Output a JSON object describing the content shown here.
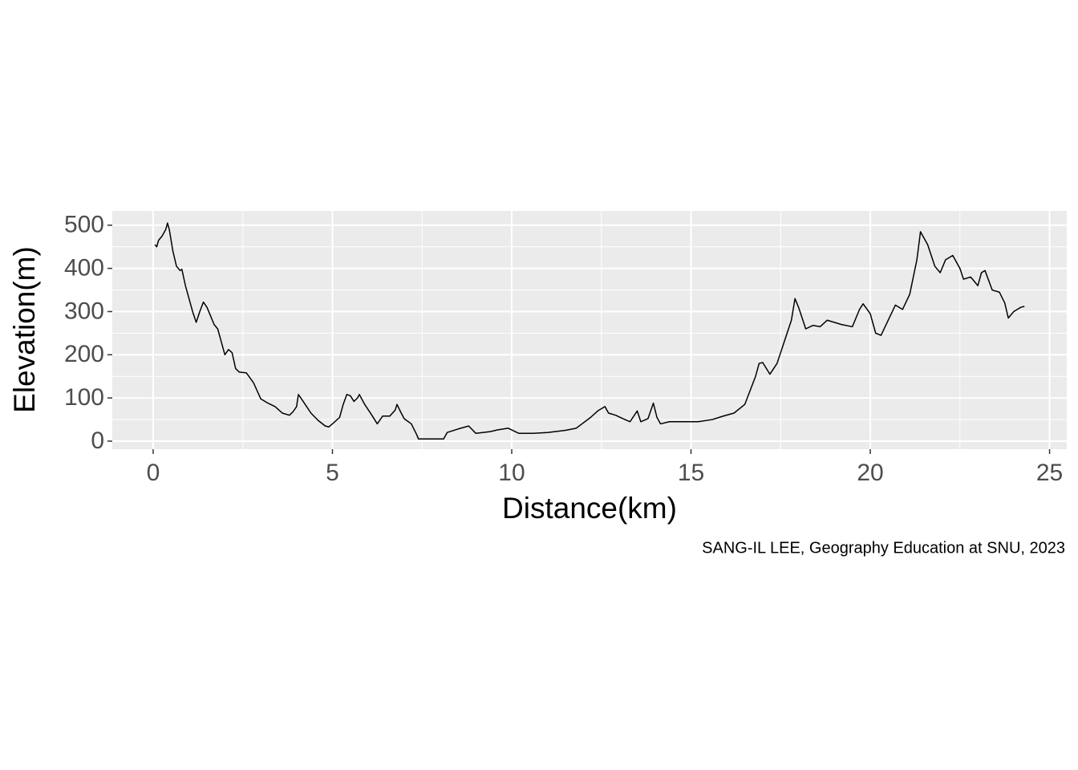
{
  "chart_data": {
    "type": "line",
    "x_label": "Distance(km)",
    "y_label": "Elevation(m)",
    "caption": "SANG-IL LEE, Geography Education at SNU, 2023",
    "xlim": [
      -1.14,
      25.48
    ],
    "ylim": [
      -18.6,
      533
    ],
    "xticks": [
      0,
      5,
      10,
      15,
      20,
      25
    ],
    "yticks": [
      0,
      100,
      200,
      300,
      400,
      500
    ],
    "minor_xticks": [
      2.5,
      7.5,
      12.5,
      17.5,
      22.5
    ],
    "minor_yticks": [
      50,
      150,
      250,
      350,
      450
    ],
    "grid": true,
    "x": [
      0.05,
      0.1,
      0.15,
      0.25,
      0.35,
      0.4,
      0.45,
      0.55,
      0.65,
      0.75,
      0.8,
      0.9,
      1.0,
      1.1,
      1.2,
      1.3,
      1.4,
      1.5,
      1.6,
      1.7,
      1.8,
      1.9,
      2.0,
      2.1,
      2.2,
      2.3,
      2.4,
      2.6,
      2.8,
      3.0,
      3.2,
      3.4,
      3.6,
      3.8,
      3.9,
      4.0,
      4.05,
      4.2,
      4.4,
      4.6,
      4.8,
      4.9,
      5.0,
      5.2,
      5.3,
      5.4,
      5.5,
      5.6,
      5.7,
      5.75,
      5.9,
      6.1,
      6.25,
      6.4,
      6.6,
      6.75,
      6.8,
      6.9,
      7.0,
      7.2,
      7.35,
      7.4,
      8.1,
      8.2,
      8.5,
      8.8,
      9.0,
      9.4,
      9.6,
      9.9,
      10.2,
      10.6,
      11.0,
      11.5,
      11.8,
      12.2,
      12.4,
      12.6,
      12.7,
      12.9,
      13.1,
      13.3,
      13.5,
      13.6,
      13.8,
      13.95,
      14.05,
      14.15,
      14.4,
      14.8,
      15.2,
      15.6,
      15.9,
      16.2,
      16.5,
      16.8,
      16.9,
      17.0,
      17.2,
      17.4,
      17.6,
      17.8,
      17.9,
      18.0,
      18.2,
      18.4,
      18.6,
      18.8,
      19.2,
      19.5,
      19.7,
      19.8,
      20.0,
      20.15,
      20.3,
      20.5,
      20.7,
      20.9,
      21.1,
      21.3,
      21.4,
      21.6,
      21.8,
      21.95,
      22.1,
      22.3,
      22.5,
      22.6,
      22.8,
      23.0,
      23.1,
      23.2,
      23.4,
      23.6,
      23.75,
      23.85,
      24.0,
      24.2,
      24.3
    ],
    "series": [
      {
        "color": "#000000",
        "values": [
          455,
          450,
          465,
          475,
          490,
          505,
          490,
          440,
          405,
          395,
          398,
          360,
          330,
          300,
          275,
          300,
          322,
          310,
          290,
          270,
          260,
          230,
          200,
          212,
          205,
          168,
          160,
          158,
          135,
          98,
          88,
          80,
          65,
          60,
          68,
          80,
          108,
          90,
          65,
          48,
          35,
          33,
          40,
          55,
          85,
          108,
          105,
          92,
          100,
          108,
          85,
          60,
          40,
          58,
          58,
          72,
          85,
          68,
          52,
          40,
          15,
          5,
          5,
          20,
          28,
          35,
          18,
          22,
          26,
          30,
          18,
          18,
          20,
          25,
          30,
          55,
          70,
          80,
          65,
          60,
          52,
          45,
          70,
          45,
          52,
          88,
          55,
          40,
          45,
          45,
          45,
          50,
          58,
          65,
          85,
          150,
          180,
          182,
          155,
          180,
          230,
          280,
          330,
          310,
          260,
          268,
          265,
          280,
          270,
          265,
          305,
          318,
          295,
          250,
          245,
          280,
          315,
          305,
          340,
          420,
          485,
          455,
          405,
          390,
          420,
          430,
          400,
          375,
          380,
          360,
          390,
          395,
          350,
          345,
          320,
          285,
          300,
          310,
          312
        ]
      }
    ]
  }
}
